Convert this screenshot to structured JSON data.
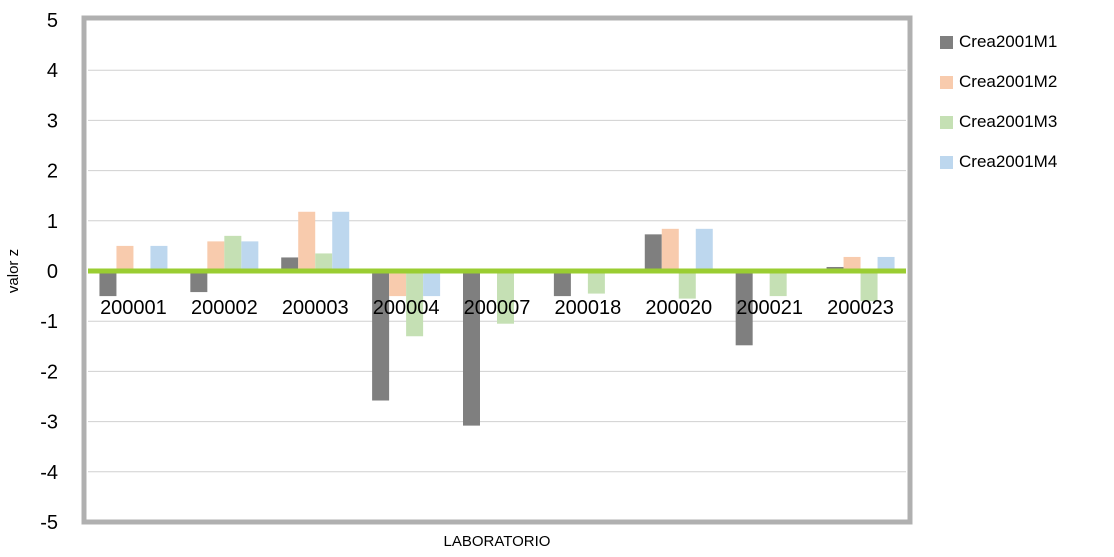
{
  "chart_data": {
    "type": "bar",
    "title": "",
    "xlabel": "LABORATORIO",
    "ylabel": "valor z",
    "ylim": [
      -5,
      5
    ],
    "yticks": [
      "5",
      "4",
      "3",
      "2",
      "1",
      "0",
      "-1",
      "-2",
      "-3",
      "-4",
      "-5"
    ],
    "grid": true,
    "legend_position": "right",
    "zero_line_color": "#9ACD32",
    "frame_color": "#B0B0B0",
    "categories": [
      "200001",
      "200002",
      "200003",
      "200004",
      "200007",
      "200018",
      "200020",
      "200021",
      "200023"
    ],
    "series": [
      {
        "name": "Crea2001M1",
        "color": "#7F7F7F",
        "values": [
          -0.5,
          -0.42,
          0.27,
          -2.58,
          -3.08,
          -0.5,
          0.73,
          -1.48,
          0.08
        ]
      },
      {
        "name": "Crea2001M2",
        "color": "#F8CBAD",
        "values": [
          0.5,
          0.59,
          1.18,
          -0.5,
          0.0,
          0.0,
          0.84,
          0.0,
          0.28
        ]
      },
      {
        "name": "Crea2001M3",
        "color": "#C5E0B4",
        "values": [
          0.0,
          0.7,
          0.35,
          -1.3,
          -1.05,
          -0.45,
          -0.55,
          -0.5,
          -0.6
        ]
      },
      {
        "name": "Crea2001M4",
        "color": "#BDD7EE",
        "values": [
          0.5,
          0.59,
          1.18,
          -0.5,
          0.0,
          0.0,
          0.84,
          0.0,
          0.28
        ]
      }
    ]
  }
}
